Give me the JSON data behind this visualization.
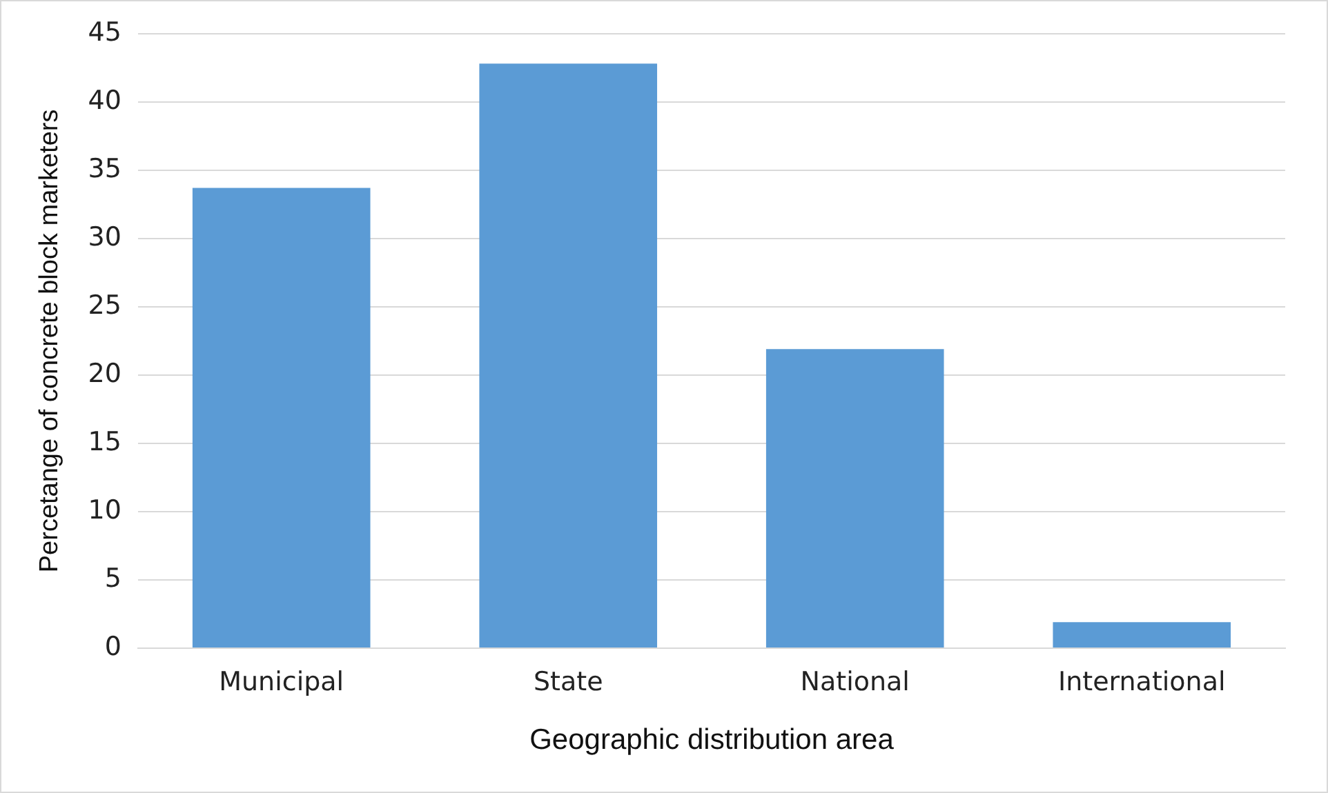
{
  "chart_data": {
    "type": "bar",
    "xlabel": "Geographic distribution area",
    "ylabel": "Percetange of concrete block marketers",
    "categories": [
      "Municipal",
      "State",
      "National",
      "International"
    ],
    "values": [
      33.7,
      42.8,
      21.9,
      1.9
    ],
    "color": "#5b9bd5",
    "ylim": [
      0,
      45
    ],
    "yticks": [
      0,
      5,
      10,
      15,
      20,
      25,
      30,
      35,
      40,
      45
    ],
    "grid": "y"
  }
}
